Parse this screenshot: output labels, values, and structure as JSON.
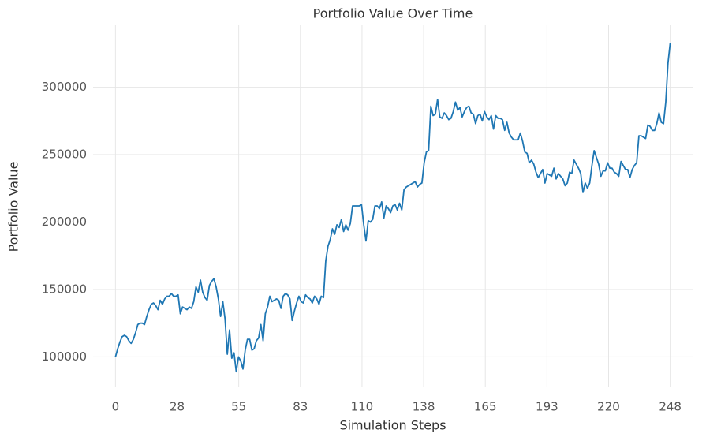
{
  "chart_data": {
    "type": "line",
    "title": "Portfolio Value Over Time",
    "x_label": "Simulation Steps",
    "y_label": "Portfolio Value",
    "color": "#1f77b4",
    "grid": true,
    "xlim": [
      -10,
      258
    ],
    "ylim": [
      78000,
      346000
    ],
    "xticks": [
      {
        "value": 0,
        "label": "0"
      },
      {
        "value": 27.556,
        "label": "28"
      },
      {
        "value": 55.111,
        "label": "55"
      },
      {
        "value": 82.667,
        "label": "83"
      },
      {
        "value": 110.222,
        "label": "110"
      },
      {
        "value": 137.778,
        "label": "138"
      },
      {
        "value": 165.333,
        "label": "165"
      },
      {
        "value": 192.889,
        "label": "193"
      },
      {
        "value": 220.444,
        "label": "220"
      },
      {
        "value": 248,
        "label": "248"
      }
    ],
    "yticks": [
      100000,
      150000,
      200000,
      250000,
      300000
    ],
    "values": [
      100000,
      106000,
      111000,
      115000,
      116000,
      115000,
      112000,
      110000,
      113000,
      118000,
      124000,
      125000,
      125000,
      124000,
      130000,
      135000,
      139000,
      140000,
      138000,
      135000,
      142000,
      139000,
      143000,
      145000,
      145000,
      147000,
      145000,
      145000,
      146000,
      132000,
      137000,
      136000,
      135000,
      137000,
      136000,
      141000,
      152000,
      148000,
      157000,
      148000,
      144000,
      142000,
      153000,
      156000,
      158000,
      152000,
      143000,
      130000,
      141000,
      128000,
      102000,
      120000,
      99000,
      103000,
      89000,
      100000,
      97000,
      91000,
      105000,
      113000,
      113000,
      105000,
      106000,
      112000,
      114000,
      124000,
      112000,
      132000,
      137000,
      145000,
      141000,
      142000,
      143000,
      142000,
      136000,
      145000,
      147000,
      146000,
      143000,
      127000,
      134000,
      140000,
      145000,
      141000,
      140000,
      146000,
      144000,
      143000,
      140000,
      145000,
      143000,
      139000,
      145000,
      144000,
      171000,
      182000,
      187000,
      195000,
      191000,
      198000,
      196000,
      202000,
      193000,
      198000,
      194000,
      199000,
      212000,
      212000,
      212000,
      212000,
      213000,
      198000,
      186000,
      201000,
      200000,
      202000,
      212000,
      212000,
      210000,
      215000,
      203000,
      212000,
      210000,
      207000,
      212000,
      213000,
      209000,
      214000,
      209000,
      224000,
      226000,
      227000,
      228000,
      229000,
      230000,
      226000,
      228000,
      229000,
      244000,
      252000,
      253000,
      286000,
      279000,
      280000,
      291000,
      278000,
      277000,
      281000,
      279000,
      276000,
      277000,
      282000,
      289000,
      283000,
      285000,
      278000,
      282000,
      285000,
      286000,
      281000,
      280000,
      273000,
      279000,
      280000,
      275000,
      282000,
      278000,
      276000,
      279000,
      269000,
      279000,
      277000,
      277000,
      276000,
      268000,
      274000,
      266000,
      263000,
      261000,
      261000,
      261000,
      266000,
      260000,
      252000,
      251000,
      244000,
      246000,
      243000,
      237000,
      233000,
      236000,
      239000,
      229000,
      236000,
      235000,
      234000,
      240000,
      232000,
      236000,
      234000,
      232000,
      227000,
      229000,
      237000,
      236000,
      246000,
      243000,
      240000,
      236000,
      222000,
      229000,
      225000,
      229000,
      242000,
      253000,
      248000,
      243000,
      234000,
      238000,
      238000,
      244000,
      240000,
      240000,
      237000,
      236000,
      234000,
      245000,
      242000,
      239000,
      239000,
      233000,
      239000,
      242000,
      244000,
      264000,
      264000,
      263000,
      262000,
      272000,
      271000,
      268000,
      268000,
      273000,
      281000,
      274000,
      273000,
      289000,
      318000,
      333000
    ]
  }
}
